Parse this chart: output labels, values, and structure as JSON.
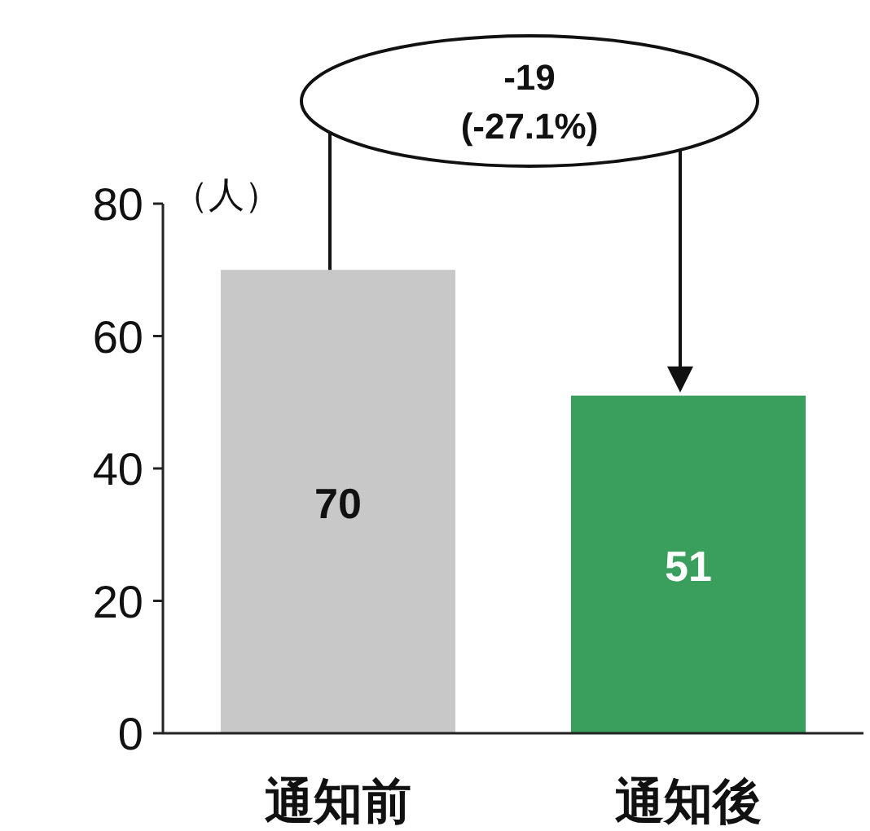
{
  "chart_data": {
    "type": "bar",
    "ylabel": "（人）",
    "categories": [
      "通知前",
      "通知後"
    ],
    "values": [
      70,
      51
    ],
    "colors": [
      "#c8c8c8",
      "#3a9e5c"
    ],
    "ylim": [
      0,
      80
    ],
    "yticks": [
      0,
      20,
      40,
      60,
      80
    ],
    "data_labels": true,
    "grid": false,
    "annotations": [
      "-19",
      "(-27.1%)"
    ]
  }
}
